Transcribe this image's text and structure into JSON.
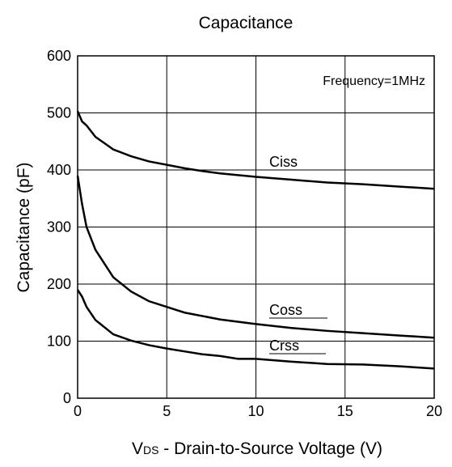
{
  "chart_data": {
    "type": "line",
    "title": "Capacitance",
    "ylabel": "Capacitance (pF)",
    "xlabel_parts": [
      "V",
      "DS",
      " - Drain-to-Source Voltage (V)"
    ],
    "annotation": "Frequency=1MHz",
    "xlim": [
      0,
      20
    ],
    "xticks": [
      0,
      5,
      10,
      15,
      20
    ],
    "ylim": [
      0,
      600
    ],
    "yticks": [
      0,
      100,
      200,
      300,
      400,
      500,
      600
    ],
    "grid": true,
    "series": [
      {
        "name": "Ciss",
        "color": "#000000",
        "x": [
          0,
          0.25,
          0.5,
          1,
          2,
          3,
          4,
          5,
          6,
          7,
          8,
          10,
          12,
          14,
          16,
          18,
          20
        ],
        "values": [
          503,
          485,
          478,
          458,
          436,
          424,
          415,
          409,
          403,
          398,
          394,
          388,
          383,
          378,
          375,
          371,
          367
        ]
      },
      {
        "name": "Coss",
        "color": "#000000",
        "x": [
          0,
          0.25,
          0.5,
          1,
          2,
          3,
          4,
          5,
          6,
          8,
          10,
          12,
          14,
          16,
          18,
          20
        ],
        "values": [
          390,
          340,
          300,
          260,
          212,
          187,
          170,
          160,
          150,
          138,
          130,
          123,
          118,
          114,
          110,
          106
        ]
      },
      {
        "name": "Crss",
        "color": "#000000",
        "x": [
          0,
          0.25,
          0.5,
          1,
          2,
          3,
          4,
          5,
          6,
          7,
          8,
          9,
          10,
          12,
          14,
          16,
          18,
          20
        ],
        "values": [
          190,
          178,
          160,
          137,
          112,
          101,
          93,
          87,
          82,
          77,
          74,
          69,
          69,
          64,
          60,
          59,
          56,
          52
        ]
      }
    ]
  }
}
